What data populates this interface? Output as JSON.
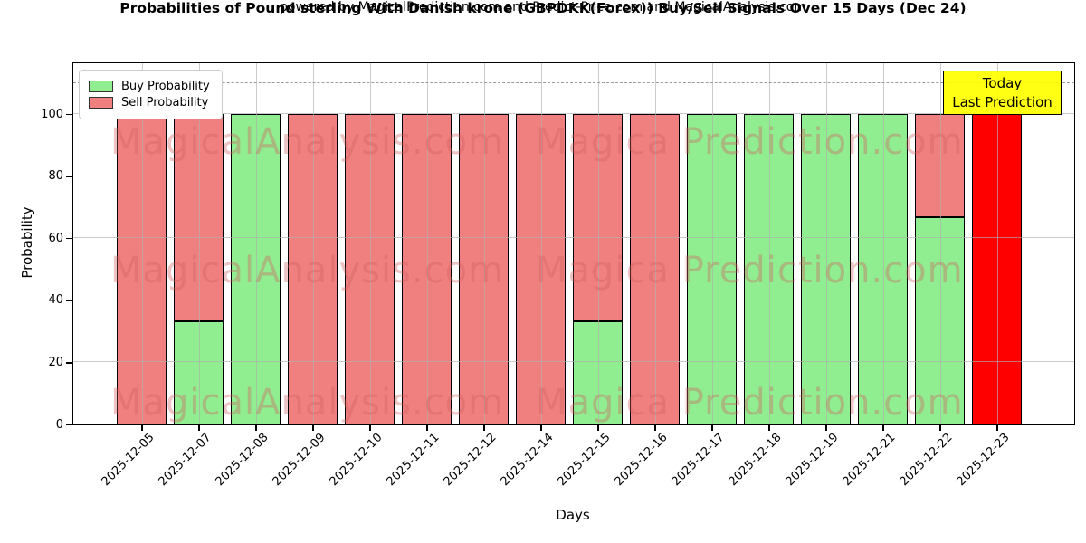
{
  "title": "Probabilities of Pound sterling With Danish krone (GBPDKK(Forex)) Buy/Sell Signals Over 15 Days (Dec 24)",
  "subtitle": "powered by MagicalPrediction.com and Predict-Price.com and MagicalAnalysis.com",
  "legend": {
    "items": [
      {
        "label": "Buy Probability",
        "color": "#90EE90"
      },
      {
        "label": "Sell Probability",
        "color": "#F08080"
      }
    ]
  },
  "today_box": {
    "line1": "Today",
    "line2": "Last Prediction",
    "bg": "#FFFF00"
  },
  "watermarks": {
    "left": "MagicalAnalysis.com",
    "right": "Magica Prediction.com"
  },
  "colors": {
    "buy": "#90EE90",
    "sell": "#F08080",
    "today": "#FF0000",
    "grid": "#AFAFAF",
    "dashed_line": "#9A9A9A",
    "bar_edge": "#000000",
    "annotation_bg": "#FFFF00"
  },
  "chart_data": {
    "type": "bar",
    "stacked": true,
    "title": "Probabilities of Pound sterling With Danish krone (GBPDKK(Forex)) Buy/Sell Signals Over 15 Days (Dec 24)",
    "xlabel": "Days",
    "ylabel": "Probability",
    "ylim": [
      0,
      116
    ],
    "yticks": [
      0,
      20,
      40,
      60,
      80,
      100
    ],
    "dashed_line_y": 110,
    "grid": true,
    "legend_position": "upper left",
    "categories": [
      "2025-12-05",
      "2025-12-07",
      "2025-12-08",
      "2025-12-09",
      "2025-12-10",
      "2025-12-11",
      "2025-12-12",
      "2025-12-14",
      "2025-12-15",
      "2025-12-16",
      "2025-12-17",
      "2025-12-18",
      "2025-12-19",
      "2025-12-21",
      "2025-12-22",
      "2025-12-23"
    ],
    "series": [
      {
        "name": "Buy Probability",
        "color": "#90EE90",
        "values": [
          0,
          33.33,
          100,
          0,
          0,
          0,
          0,
          0,
          33.33,
          0,
          100,
          100,
          100,
          100,
          66.67,
          0
        ]
      },
      {
        "name": "Sell Probability",
        "color": "#F08080",
        "values": [
          100,
          66.67,
          0,
          100,
          100,
          100,
          100,
          100,
          66.67,
          100,
          0,
          0,
          0,
          0,
          33.33,
          0
        ]
      },
      {
        "name": "Today Last Prediction",
        "color": "#FF0000",
        "values": [
          0,
          0,
          0,
          0,
          0,
          0,
          0,
          0,
          0,
          0,
          0,
          0,
          0,
          0,
          0,
          100
        ]
      }
    ]
  }
}
